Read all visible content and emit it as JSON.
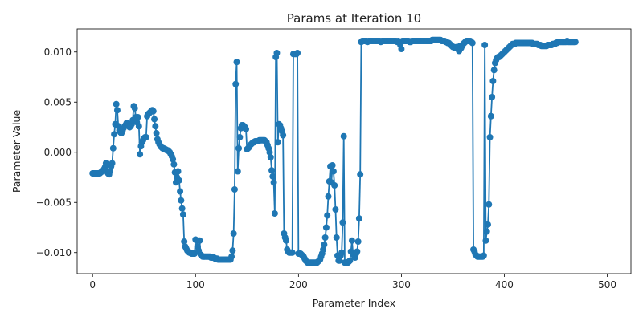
{
  "chart_data": {
    "type": "line",
    "title": "Params at Iteration 10",
    "xlabel": "Parameter Index",
    "ylabel": "Parameter Value",
    "xlim": [
      -15,
      523
    ],
    "ylim": [
      -0.0121,
      0.0123
    ],
    "xticks": [
      0,
      100,
      200,
      300,
      400,
      500
    ],
    "yticks": [
      -0.01,
      -0.005,
      0.0,
      0.005,
      0.01
    ],
    "xtick_labels": [
      "0",
      "100",
      "200",
      "300",
      "400",
      "500"
    ],
    "ytick_labels": [
      "−0.010",
      "−0.005",
      "0.000",
      "0.005",
      "0.010"
    ],
    "grid": false,
    "legend": "none",
    "color": "#1f77b4",
    "markers": true,
    "series": [
      {
        "x_start": 0,
        "x_step": 1,
        "values": [
          -0.0021,
          -0.0021,
          -0.0021,
          -0.0021,
          -0.0021,
          -0.0021,
          -0.0021,
          -0.0021,
          -0.002,
          -0.0019,
          -0.0019,
          -0.0017,
          -0.0015,
          -0.0011,
          -0.0012,
          -0.0021,
          -0.0022,
          -0.0019,
          -0.0014,
          -0.0011,
          0.0004,
          0.0018,
          0.0028,
          0.0048,
          0.0042,
          0.0026,
          0.0022,
          0.002,
          0.0019,
          0.0021,
          0.0024,
          0.0026,
          0.0027,
          0.0029,
          0.0029,
          0.0026,
          0.0025,
          0.0026,
          0.0028,
          0.0032,
          0.0046,
          0.0044,
          0.0035,
          0.003,
          0.0035,
          0.0026,
          -0.0002,
          0.0006,
          0.001,
          0.0012,
          0.0014,
          0.0015,
          0.0015,
          0.0036,
          0.0038,
          0.0039,
          0.004,
          0.0041,
          0.0042,
          0.0041,
          0.0033,
          0.0026,
          0.0019,
          0.0013,
          0.001,
          0.0008,
          0.0006,
          0.0005,
          0.0004,
          0.0004,
          0.0003,
          0.0003,
          0.0002,
          0.0002,
          0.0001,
          0.0,
          -0.0002,
          -0.0004,
          -0.0007,
          -0.0012,
          -0.002,
          -0.003,
          -0.0025,
          -0.0019,
          -0.0028,
          -0.0039,
          -0.0048,
          -0.0056,
          -0.0062,
          -0.0089,
          -0.0094,
          -0.0096,
          -0.0098,
          -0.0099,
          -0.01,
          -0.01,
          -0.0101,
          -0.0101,
          -0.0101,
          -0.0101,
          -0.0087,
          -0.0088,
          -0.0094,
          -0.0098,
          -0.0088,
          -0.0102,
          -0.0103,
          -0.0104,
          -0.0104,
          -0.0104,
          -0.0104,
          -0.0104,
          -0.0104,
          -0.0104,
          -0.0104,
          -0.0105,
          -0.0105,
          -0.0105,
          -0.0105,
          -0.0106,
          -0.0106,
          -0.0106,
          -0.0107,
          -0.0107,
          -0.0107,
          -0.0107,
          -0.0107,
          -0.0107,
          -0.0107,
          -0.0107,
          -0.0107,
          -0.0107,
          -0.0107,
          -0.0107,
          -0.0107,
          -0.0104,
          -0.0098,
          -0.0081,
          -0.0037,
          0.0068,
          0.009,
          -0.0019,
          0.0004,
          0.0015,
          0.0024,
          0.0027,
          0.0027,
          0.0026,
          0.0025,
          0.0023,
          0.0003,
          0.0004,
          0.0005,
          0.0007,
          0.0008,
          0.0009,
          0.001,
          0.001,
          0.0011,
          0.0011,
          0.0011,
          0.0011,
          0.0012,
          0.0012,
          0.0012,
          0.0012,
          0.0012,
          0.0012,
          0.0011,
          0.001,
          0.0007,
          0.0004,
          0.0,
          -0.0005,
          -0.0018,
          -0.0024,
          -0.003,
          -0.0061,
          0.0095,
          0.0099,
          0.001,
          0.0028,
          0.0027,
          0.0024,
          0.0021,
          0.0017,
          -0.0081,
          -0.0085,
          -0.0088,
          -0.0097,
          -0.0099,
          -0.01,
          -0.01,
          -0.01,
          -0.01,
          0.0098,
          0.0098,
          0.0098,
          0.0098,
          0.0099,
          -0.0101,
          -0.0101,
          -0.0101,
          -0.0102,
          -0.0103,
          -0.0104,
          -0.0106,
          -0.0108,
          -0.0109,
          -0.011,
          -0.011,
          -0.011,
          -0.011,
          -0.011,
          -0.011,
          -0.011,
          -0.011,
          -0.011,
          -0.011,
          -0.0109,
          -0.0108,
          -0.0107,
          -0.0104,
          -0.0101,
          -0.0097,
          -0.0092,
          -0.0085,
          -0.0075,
          -0.0063,
          -0.0044,
          -0.0029,
          -0.0014,
          -0.003,
          -0.0013,
          -0.0019,
          -0.0033,
          -0.0057,
          -0.0085,
          -0.0103,
          -0.0108,
          -0.0108,
          -0.0103,
          -0.01,
          -0.007,
          0.0016,
          -0.011,
          -0.011,
          -0.011,
          -0.011,
          -0.0109,
          -0.0108,
          -0.0099,
          -0.0088,
          -0.0101,
          -0.0103,
          -0.0105,
          -0.0101,
          -0.0099,
          -0.0089,
          -0.0066,
          -0.0022,
          0.011,
          0.0111,
          0.0111,
          0.0111,
          0.0111,
          0.0111,
          0.011,
          0.0111,
          0.0111,
          0.0111,
          0.0111,
          0.0111,
          0.0111,
          0.0111,
          0.0111,
          0.0111,
          0.0111,
          0.0111,
          0.0111,
          0.011,
          0.0111,
          0.0111,
          0.0111,
          0.0111,
          0.0111,
          0.0111,
          0.0111,
          0.0111,
          0.0111,
          0.0111,
          0.0111,
          0.0111,
          0.0111,
          0.0111,
          0.0111,
          0.011,
          0.0111,
          0.011,
          0.0107,
          0.0103,
          0.0111,
          0.0111,
          0.0111,
          0.0111,
          0.0111,
          0.0111,
          0.0111,
          0.011,
          0.011,
          0.0111,
          0.0111,
          0.0111,
          0.0111,
          0.0111,
          0.0111,
          0.0111,
          0.0111,
          0.0111,
          0.0111,
          0.0111,
          0.0111,
          0.0111,
          0.0111,
          0.0111,
          0.0111,
          0.0111,
          0.0111,
          0.0111,
          0.0111,
          0.0112,
          0.0112,
          0.0112,
          0.0112,
          0.0112,
          0.0112,
          0.0112,
          0.0112,
          0.0112,
          0.0111,
          0.0111,
          0.0111,
          0.0111,
          0.011,
          0.011,
          0.0109,
          0.0109,
          0.0108,
          0.0107,
          0.0106,
          0.0105,
          0.0105,
          0.0104,
          0.0104,
          0.0105,
          0.0105,
          0.0101,
          0.0106,
          0.0104,
          0.0106,
          0.0108,
          0.0109,
          0.011,
          0.0111,
          0.0111,
          0.0111,
          0.0111,
          0.0111,
          0.011,
          0.0109,
          -0.0097,
          -0.0099,
          -0.0102,
          -0.0103,
          -0.0104,
          -0.0104,
          -0.0104,
          -0.0104,
          -0.0104,
          -0.0104,
          -0.0103,
          0.0107,
          -0.0088,
          -0.0079,
          -0.0072,
          -0.0052,
          0.0015,
          0.0036,
          0.0055,
          0.0071,
          0.0082,
          0.0089,
          0.0092,
          0.0094,
          0.0095,
          0.0095,
          0.0096,
          0.0097,
          0.0098,
          0.0099,
          0.01,
          0.0101,
          0.0102,
          0.0103,
          0.0104,
          0.0105,
          0.0106,
          0.0107,
          0.0108,
          0.0108,
          0.0108,
          0.0109,
          0.0109,
          0.0109,
          0.0109,
          0.0109,
          0.0109,
          0.0109,
          0.0109,
          0.0109,
          0.0109,
          0.0109,
          0.0109,
          0.0109,
          0.0109,
          0.0109,
          0.0109,
          0.0109,
          0.0108,
          0.0108,
          0.0108,
          0.0108,
          0.0108,
          0.0107,
          0.0107,
          0.0107,
          0.0106,
          0.0106,
          0.0106,
          0.0106,
          0.0106,
          0.0106,
          0.0107,
          0.0107,
          0.0107,
          0.0107,
          0.0107,
          0.0108,
          0.0108,
          0.0108,
          0.0109,
          0.0109,
          0.011,
          0.011,
          0.011,
          0.011,
          0.011,
          0.011,
          0.011,
          0.011,
          0.011,
          0.0111,
          0.011,
          0.011,
          0.011,
          0.011,
          0.011,
          0.011,
          0.011,
          0.011
        ]
      }
    ]
  }
}
